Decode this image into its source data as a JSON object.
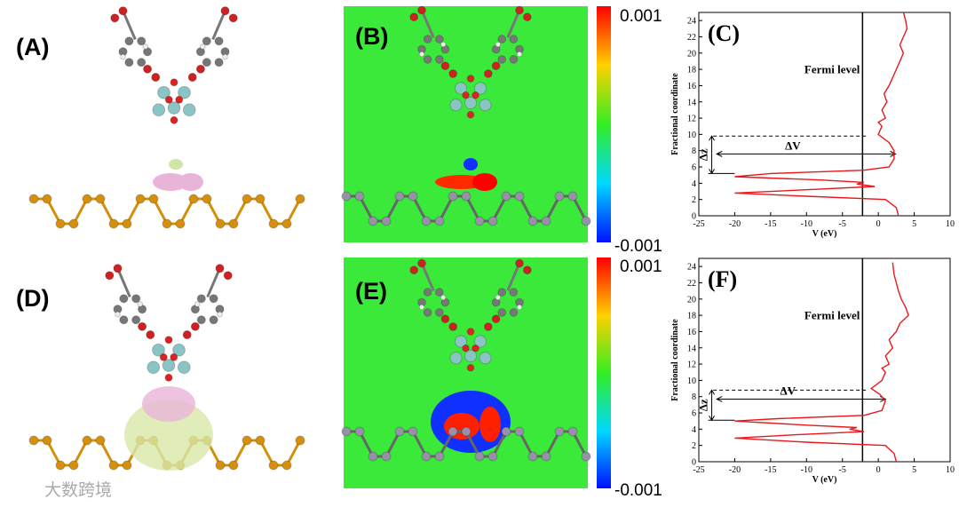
{
  "panel_labels": [
    "(A)",
    "(B)",
    "(D)",
    "(E)"
  ],
  "colorbars": [
    {
      "max": "0.001",
      "min": "-0.001"
    },
    {
      "max": "0.001",
      "min": "-0.001"
    }
  ],
  "watermark": "大数跨境",
  "chart_data": [
    {
      "type": "line",
      "title": "(C)",
      "xlabel": "V (eV)",
      "ylabel": "Fractional coordinate",
      "xlim": [
        -25,
        10
      ],
      "xticks": [
        -25,
        -20,
        -15,
        -10,
        -5,
        0,
        5,
        10
      ],
      "ylim": [
        0,
        25
      ],
      "yticks": [
        0,
        2,
        4,
        6,
        8,
        10,
        12,
        14,
        16,
        18,
        20,
        22,
        24
      ],
      "annotations": {
        "fermi": "Fermi level",
        "dv": "ΔV",
        "dz": "Δz"
      },
      "fermi_level": -2.2,
      "dashed_level": 9.8,
      "dz": [
        5.2,
        9.8
      ],
      "dv": [
        -22.5,
        2.4
      ],
      "dv_y": 7.6,
      "x": [
        2.8,
        2.5,
        1,
        -10,
        -20,
        -10,
        -0.5,
        -3,
        -2,
        -8,
        -20,
        -15,
        -2,
        1.5,
        2.2,
        2.2,
        1.5,
        0,
        0.5,
        0,
        1,
        0.5,
        1.2,
        0.8,
        1.5,
        2,
        2.5,
        3,
        3.5,
        3,
        3.5,
        4,
        3.8,
        3.5
      ],
      "series": [
        {
          "name": "V",
          "color": "#e8191c",
          "values": [
            0,
            1,
            2,
            2.4,
            2.8,
            3.2,
            3.6,
            3.9,
            4.1,
            4.4,
            4.8,
            5.2,
            5.6,
            6,
            7,
            8,
            9,
            10,
            11,
            11.5,
            12,
            13,
            14,
            15,
            16,
            17,
            18,
            19,
            20,
            21,
            22,
            23,
            24,
            25
          ]
        }
      ]
    },
    {
      "type": "line",
      "title": "(F)",
      "xlabel": "V (eV)",
      "ylabel": "Fractional coordinate",
      "xlim": [
        -25,
        10
      ],
      "xticks": [
        -25,
        -20,
        -15,
        -10,
        -5,
        0,
        5,
        10
      ],
      "ylim": [
        0,
        25
      ],
      "yticks": [
        0,
        2,
        4,
        6,
        8,
        10,
        12,
        14,
        16,
        18,
        20,
        22,
        24
      ],
      "annotations": {
        "fermi": "Fermi level",
        "dv": "ΔV",
        "dz": "Δz"
      },
      "fermi_level": -2.2,
      "dashed_level": 8.8,
      "dz": [
        5.1,
        8.8
      ],
      "dv": [
        -22.5,
        1
      ],
      "dv_y": 7.7,
      "x": [
        2.5,
        2.2,
        1,
        -10,
        -20,
        -12,
        -2,
        -4,
        -3,
        -10,
        -20,
        -14,
        -2,
        0.5,
        1,
        0.2,
        -1,
        0.5,
        1,
        0.5,
        1.5,
        1,
        2,
        1.5,
        2.5,
        3,
        4.2,
        3.8,
        3.2,
        2.8,
        2.5,
        2.2,
        2
      ],
      "series": [
        {
          "name": "V",
          "color": "#e8191c",
          "values": [
            0,
            1,
            2,
            2.4,
            2.9,
            3.3,
            3.7,
            4,
            4.2,
            4.5,
            5,
            5.3,
            5.7,
            6.3,
            7.5,
            8.3,
            9,
            10,
            11,
            11.5,
            12,
            13,
            14,
            15,
            16,
            17,
            18,
            19,
            20,
            21,
            22,
            23,
            24.5
          ]
        }
      ]
    }
  ]
}
